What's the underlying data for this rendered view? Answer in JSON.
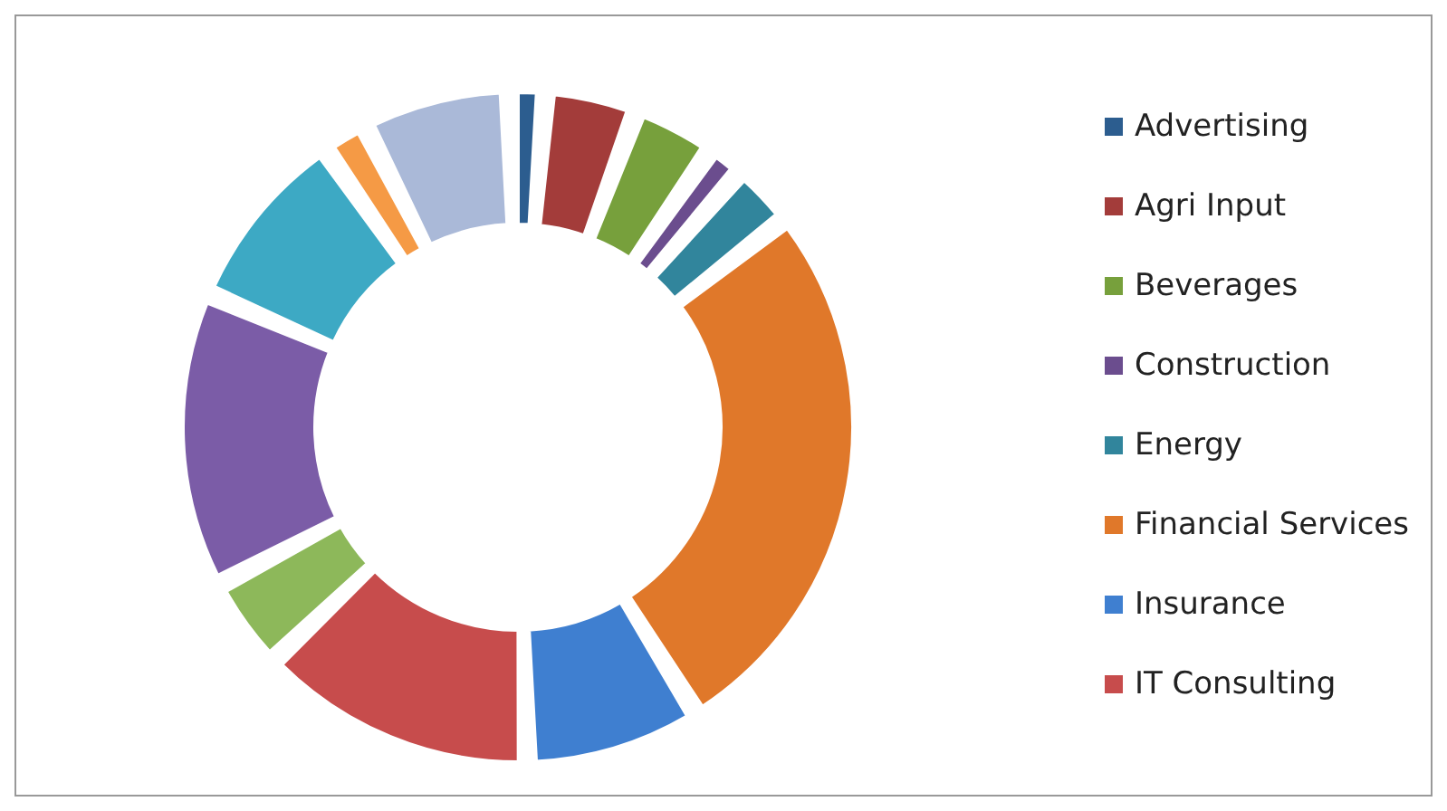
{
  "chart_data": {
    "type": "donut",
    "categories": [
      "Advertising",
      "Agri Input",
      "Beverages",
      "Construction",
      "Energy",
      "Financial Services",
      "Insurance",
      "IT Consulting",
      null,
      null,
      null,
      null,
      null
    ],
    "values": [
      1,
      4,
      3.5,
      1,
      2.5,
      29,
      8.5,
      14,
      4,
      15,
      9,
      1.5,
      7
    ],
    "colors": [
      "#2c5d8f",
      "#a33c3a",
      "#77a03c",
      "#6b4d8e",
      "#31859c",
      "#e0782a",
      "#3f7fd0",
      "#c74c4c",
      "#8db85a",
      "#7b5ca7",
      "#3da9c4",
      "#f59a45",
      "#aab9d8"
    ],
    "legend": "right"
  }
}
